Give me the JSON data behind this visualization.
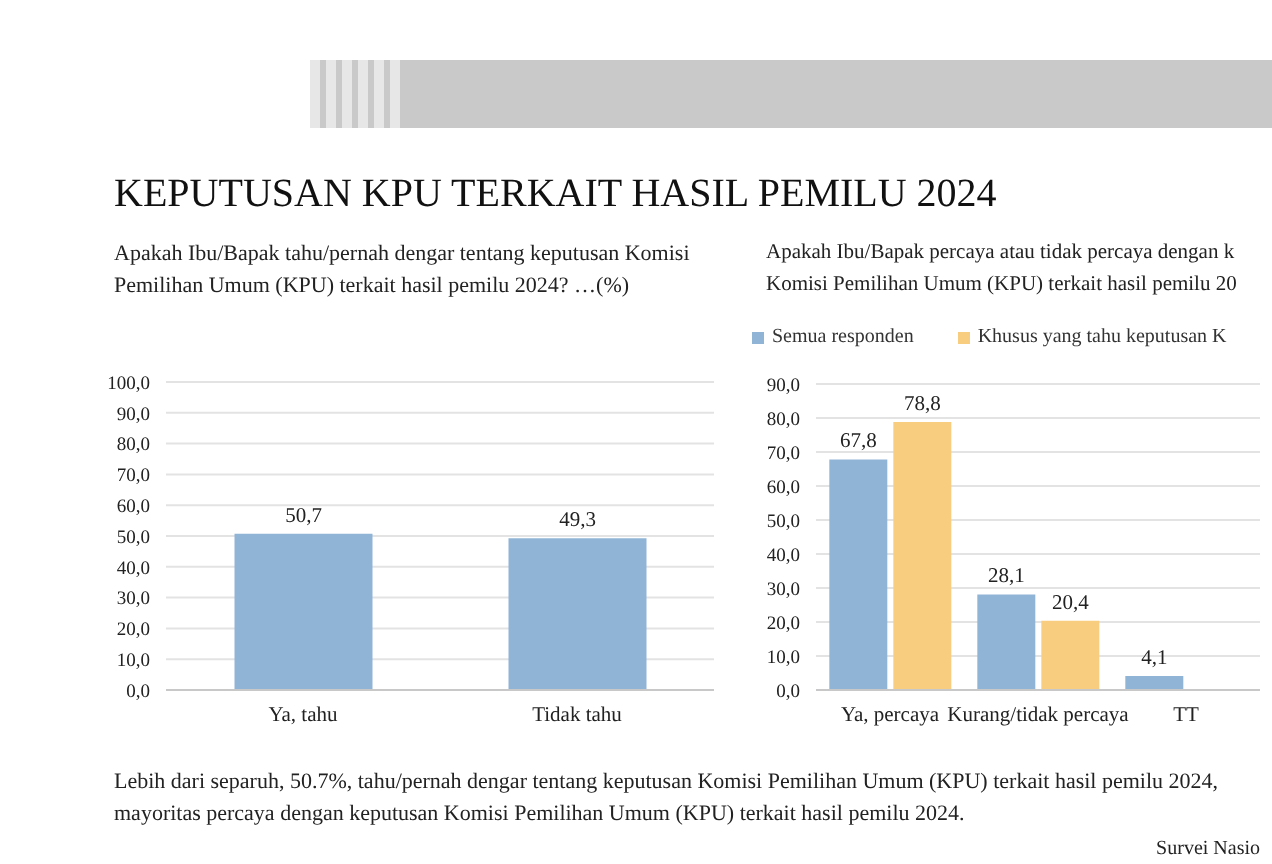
{
  "chart_data": [
    {
      "type": "bar",
      "title": "KEPUTUSAN KPU TERKAIT HASIL PEMILU 2024",
      "subtitle": "Apakah Ibu/Bapak tahu/pernah dengar tentang keputusan Komisi\nPemilihan Umum (KPU) terkait hasil pemilu 2024? …(%)",
      "categories": [
        "Ya, tahu",
        "Tidak tahu"
      ],
      "values": [
        50.7,
        49.3
      ],
      "color": "#90b4d6",
      "value_labels": [
        "50,7",
        "49,3"
      ],
      "ylim": [
        0,
        100
      ],
      "yticks": [
        {
          "value": 0,
          "label": "0,0"
        },
        {
          "value": 10,
          "label": "10,0"
        },
        {
          "value": 20,
          "label": "20,0"
        },
        {
          "value": 30,
          "label": "30,0"
        },
        {
          "value": 40,
          "label": "40,0"
        },
        {
          "value": 50,
          "label": "50,0"
        },
        {
          "value": 60,
          "label": "60,0"
        },
        {
          "value": 70,
          "label": "70,0"
        },
        {
          "value": 80,
          "label": "80,0"
        },
        {
          "value": 90,
          "label": "90,0"
        },
        {
          "value": 100,
          "label": "100,0"
        }
      ],
      "grid": "y",
      "annotations": [
        "Lebih dari separuh, 50.7%, tahu/pernah dengar tentang keputusan Komisi Pemilihan Umum (KPU) terkait hasil pemilu 2024, mayoritas percaya dengan keputusan Komisi Pemilihan Umum (KPU) terkait hasil pemilu 2024."
      ]
    },
    {
      "type": "bar",
      "subtitle": "Apakah Ibu/Bapak percaya atau tidak percaya dengan k\nKomisi Pemilihan Umum (KPU) terkait hasil pemilu 20",
      "categories": [
        "Ya, percaya",
        "Kurang/tidak percaya",
        "TT"
      ],
      "series": [
        {
          "name": "Semua responden",
          "color": "#90b4d6",
          "values": [
            67.8,
            28.1,
            4.1
          ],
          "value_labels": [
            "67,8",
            "28,1",
            "4,1"
          ]
        },
        {
          "name": "Khusus yang tahu keputusan K",
          "color": "#f9cd80",
          "values": [
            78.8,
            20.4,
            null
          ],
          "value_labels": [
            "78,8",
            "20,4",
            null
          ]
        }
      ],
      "ylim": [
        0,
        90
      ],
      "yticks": [
        {
          "value": 0,
          "label": "0,0"
        },
        {
          "value": 10,
          "label": "10,0"
        },
        {
          "value": 20,
          "label": "20,0"
        },
        {
          "value": 30,
          "label": "30,0"
        },
        {
          "value": 40,
          "label": "40,0"
        },
        {
          "value": 50,
          "label": "50,0"
        },
        {
          "value": 60,
          "label": "60,0"
        },
        {
          "value": 70,
          "label": "70,0"
        },
        {
          "value": 80,
          "label": "80,0"
        },
        {
          "value": 90,
          "label": "90,0"
        }
      ],
      "grid": "y",
      "legend": "top",
      "annotations": [
        "Survei Nasio"
      ]
    }
  ]
}
